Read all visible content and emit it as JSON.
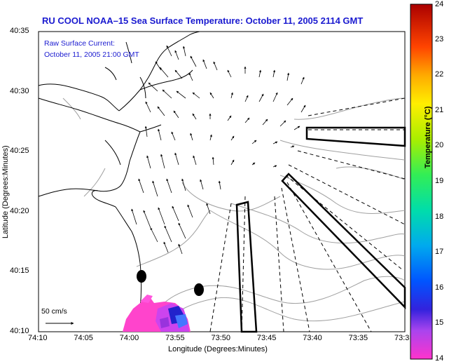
{
  "title": "RU COOL  NOAA–15  Sea Surface Temperature:  October 11, 2005 2114 GMT",
  "annotation": {
    "line1": "Raw Surface Current:",
    "line2": "October 11, 2005 21:00 GMT"
  },
  "scale_label": "50 cm/s",
  "colors": {
    "title": "#1a1ad0",
    "coast": "#000000",
    "contour": "#999999"
  },
  "chart_data": {
    "type": "map",
    "xlabel": "Longitude (Degrees:Minutes)",
    "ylabel": "Latitude (Degrees:Minutes)",
    "x_ticks": [
      "74:10",
      "74:05",
      "74:00",
      "73:55",
      "73:50",
      "73:45",
      "73:40",
      "73:35",
      "73:3"
    ],
    "y_ticks": [
      "40:35",
      "40:30",
      "40:25",
      "40:20",
      "40:15",
      "40:10"
    ],
    "colorbar": {
      "label": "Temperature (°C)",
      "ticks": [
        "24",
        "23",
        "22",
        "21",
        "20",
        "19",
        "18",
        "17",
        "16",
        "15",
        "14"
      ],
      "min": 14,
      "max": 24
    }
  }
}
